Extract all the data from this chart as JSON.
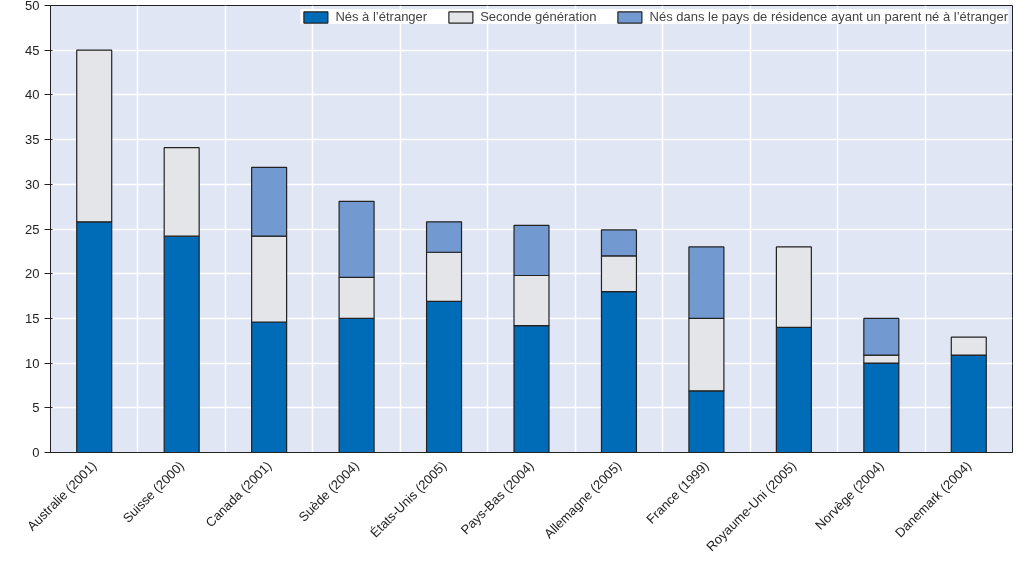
{
  "chart_data": {
    "type": "bar",
    "stacked": true,
    "categories": [
      "Australie (2001)",
      "Suisse (2000)",
      "Canada (2001)",
      "Suède (2004)",
      "États-Unis (2005)",
      "Pays-Bas (2004)",
      "Allemagne (2005)",
      "France (1999)",
      "Royaume-Uni (2005)",
      "Norvège (2004)",
      "Danemark (2004)"
    ],
    "series": [
      {
        "name": "Nés à l’étranger",
        "color": "#006bb6",
        "values": [
          25.8,
          24.2,
          14.6,
          15.0,
          16.9,
          14.2,
          18.0,
          6.9,
          14.0,
          10.0,
          10.9
        ]
      },
      {
        "name": "Seconde génération",
        "color": "#e4e5e8",
        "values": [
          19.2,
          9.9,
          9.6,
          4.6,
          5.5,
          5.6,
          4.0,
          8.1,
          9.0,
          0.9,
          2.0
        ]
      },
      {
        "name": "Nés dans le pays de résidence ayant un parent né à l’étranger",
        "color": "#7399d1",
        "values": [
          null,
          null,
          7.7,
          8.5,
          3.4,
          5.6,
          2.9,
          8.0,
          null,
          4.1,
          null
        ]
      }
    ],
    "ylim": [
      0,
      50
    ],
    "yticks": [
      0,
      5,
      10,
      15,
      20,
      25,
      30,
      35,
      40,
      45,
      50
    ],
    "grid": true,
    "legend": "top"
  }
}
